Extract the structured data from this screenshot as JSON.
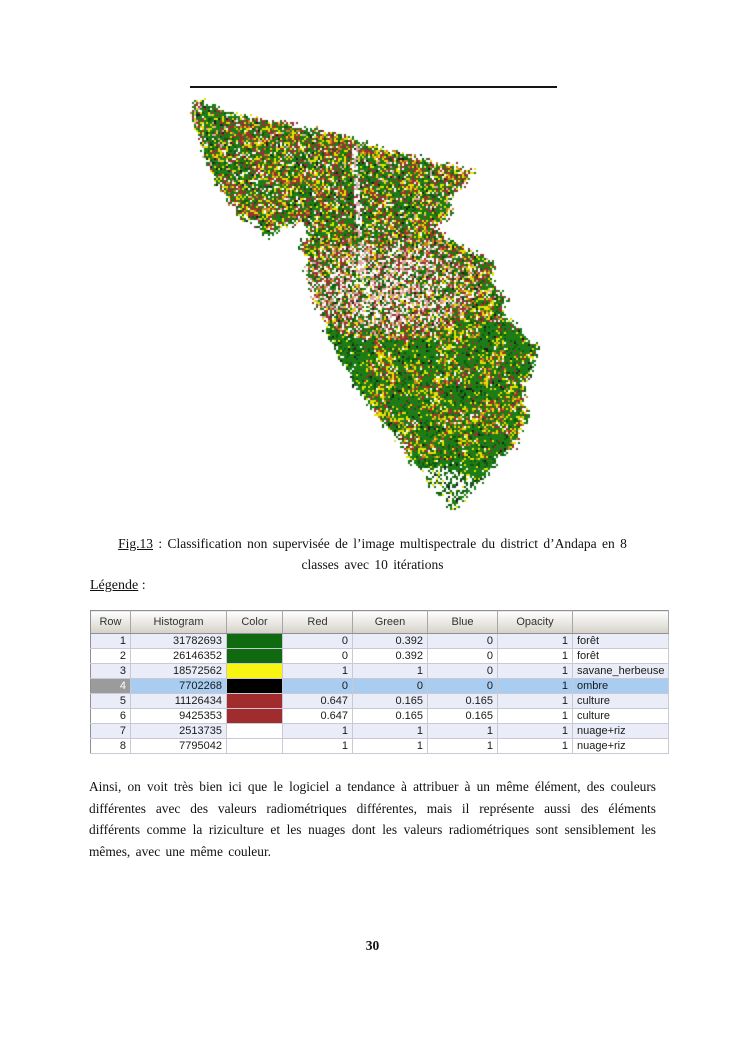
{
  "page_number": "30",
  "figure": {
    "palette": {
      "green": "#1e7c17",
      "dark_green": "#0d5a10",
      "yellow": "#e6e200",
      "orange": "#c8831e",
      "red": "#993130",
      "pink": "#d9aaa4",
      "black": "#1c1c1c",
      "white": "#ffffff"
    }
  },
  "caption": {
    "fig_label": "Fig.13",
    "line1_rest": " : Classification non supervisée de l’image multispectrale du district d’Andapa en 8",
    "line2": "classes avec 10 itérations"
  },
  "legend": {
    "label": "Légende",
    "suffix": " :"
  },
  "table": {
    "columns": [
      "Row",
      "Histogram",
      "Color",
      "Red",
      "Green",
      "Blue",
      "Opacity",
      ""
    ],
    "rows": [
      {
        "row": "1",
        "histogram": "31782693",
        "color_hex": "#106a10",
        "red": "0",
        "green": "0.392",
        "blue": "0",
        "opacity": "1",
        "class_name": "forêt",
        "selected": false
      },
      {
        "row": "2",
        "histogram": "26146352",
        "color_hex": "#106a10",
        "red": "0",
        "green": "0.392",
        "blue": "0",
        "opacity": "1",
        "class_name": "forêt",
        "selected": false
      },
      {
        "row": "3",
        "histogram": "18572562",
        "color_hex": "#f8f513",
        "red": "1",
        "green": "1",
        "blue": "0",
        "opacity": "1",
        "class_name": "savane_herbeuse",
        "selected": false
      },
      {
        "row": "4",
        "histogram": "7702268",
        "color_hex": "#000000",
        "red": "0",
        "green": "0",
        "blue": "0",
        "opacity": "1",
        "class_name": "ombre",
        "selected": true
      },
      {
        "row": "5",
        "histogram": "11126434",
        "color_hex": "#a02c2e",
        "red": "0.647",
        "green": "0.165",
        "blue": "0.165",
        "opacity": "1",
        "class_name": "culture",
        "selected": false
      },
      {
        "row": "6",
        "histogram": "9425353",
        "color_hex": "#a02c2e",
        "red": "0.647",
        "green": "0.165",
        "blue": "0.165",
        "opacity": "1",
        "class_name": "culture",
        "selected": false
      },
      {
        "row": "7",
        "histogram": "2513735",
        "color_hex": "#ffffff",
        "red": "1",
        "green": "1",
        "blue": "1",
        "opacity": "1",
        "class_name": "nuage+riz",
        "selected": false
      },
      {
        "row": "8",
        "histogram": "7795042",
        "color_hex": "#ffffff",
        "red": "1",
        "green": "1",
        "blue": "1",
        "opacity": "1",
        "class_name": "nuage+riz",
        "selected": false
      }
    ]
  },
  "paragraph": "Ainsi, on voit très bien ici que le logiciel a tendance à attribuer à un même élément, des couleurs différentes avec des valeurs radiométriques différentes, mais il représente aussi des éléments différents comme la riziculture et les nuages dont les valeurs radiométriques sont sensiblement les mêmes, avec une même couleur."
}
